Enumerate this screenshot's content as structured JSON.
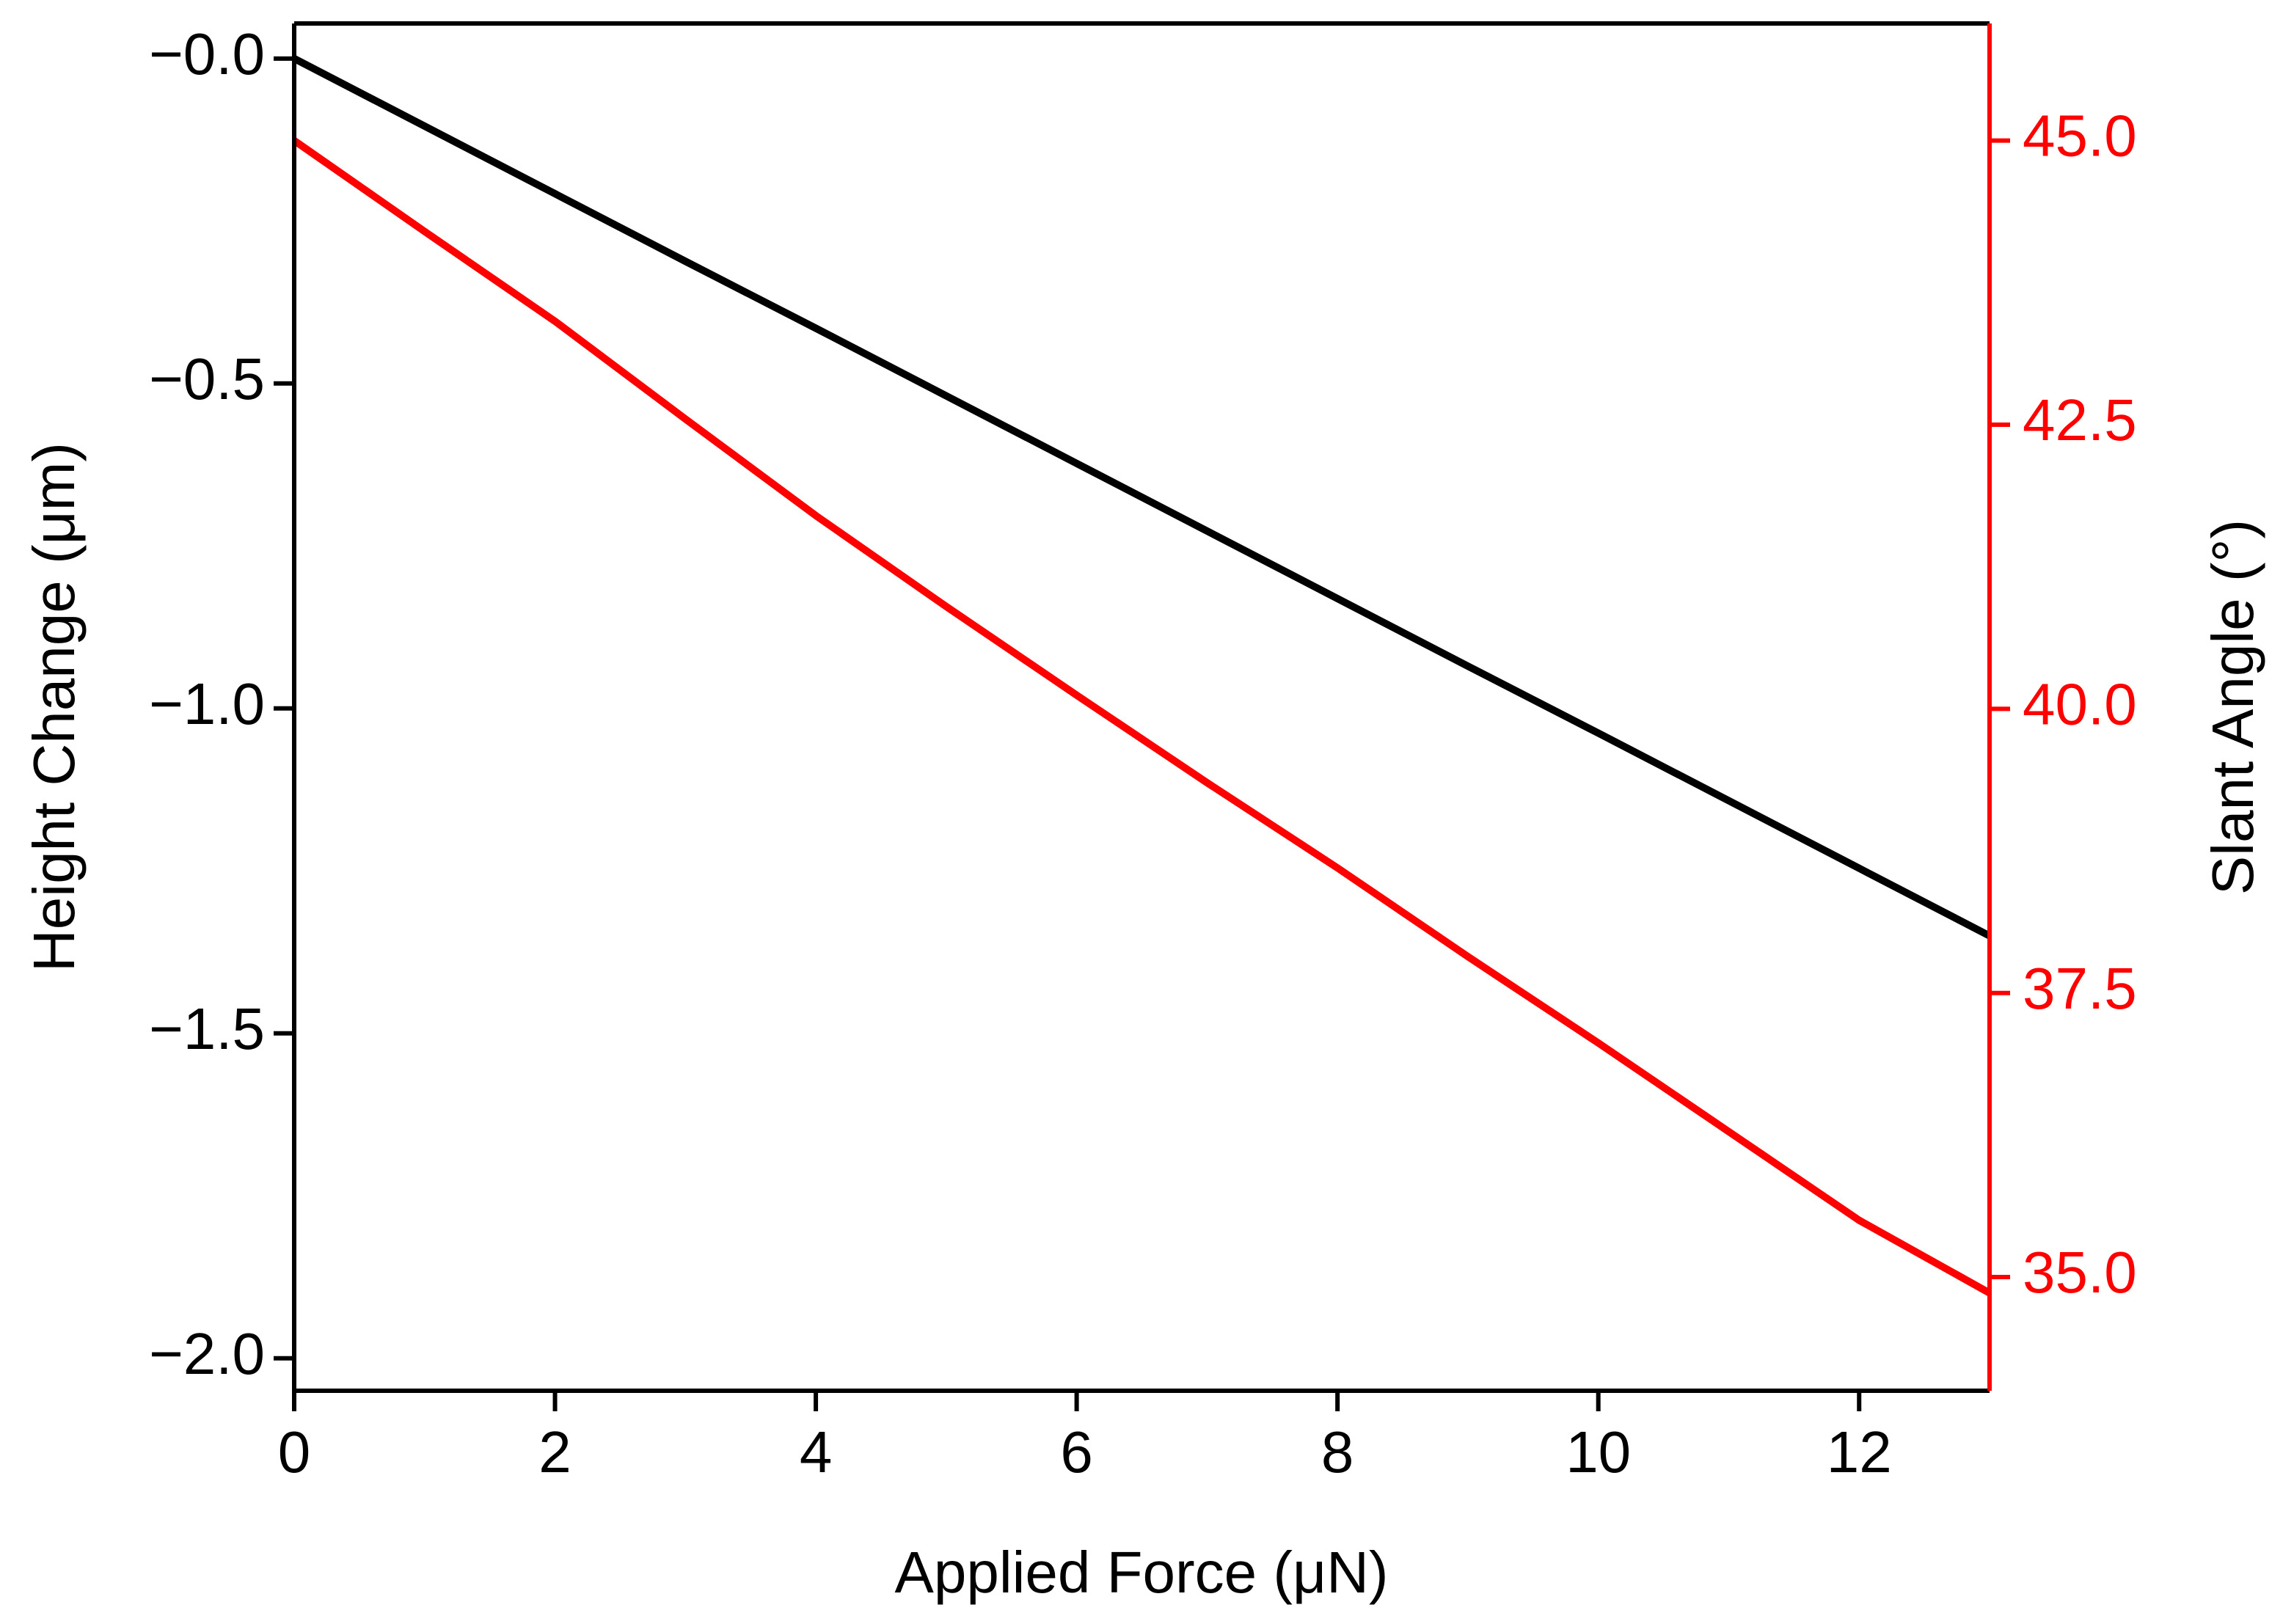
{
  "chart_data": {
    "type": "line",
    "x_label": "Applied Force (μN)",
    "y_label": "Height Change (μm)",
    "y2_label": "Slant Angle (°)",
    "x": [
      0,
      1,
      2,
      3,
      4,
      5,
      6,
      7,
      8,
      9,
      10,
      11,
      12,
      13
    ],
    "series": [
      {
        "color": "#000000",
        "values": [
          0,
          -0.104,
          -0.208,
          -0.312,
          -0.415,
          -0.519,
          -0.623,
          -0.727,
          -0.831,
          -0.935,
          -1.038,
          -1.142,
          -1.246,
          -1.35
        ]
      },
      {
        "color": "#ff0000",
        "axis": "y2",
        "values": [
          45,
          44.2,
          43.41,
          42.55,
          41.7,
          40.9,
          40.12,
          39.35,
          38.6,
          37.82,
          37.06,
          36.28,
          35.5,
          34.86
        ]
      }
    ],
    "xlim": [
      0,
      13
    ],
    "xticks": [
      0,
      2,
      4,
      6,
      8,
      10,
      12
    ],
    "ylim": [
      -2.05,
      0.054
    ],
    "yticks": [
      {
        "value": 0,
        "label": "−0.0"
      },
      {
        "value": -0.5,
        "label": "−0.5"
      },
      {
        "value": -1,
        "label": "−1.0"
      },
      {
        "value": -1.5,
        "label": "−1.5"
      },
      {
        "value": -2,
        "label": "−2.0"
      }
    ],
    "y2lim": [
      34,
      46.03
    ],
    "y2ticks": [
      {
        "value": 35,
        "label": "35.0"
      },
      {
        "value": 37.5,
        "label": "37.5"
      },
      {
        "value": 40,
        "label": "40.0"
      },
      {
        "value": 42.5,
        "label": "42.5"
      },
      {
        "value": 45,
        "label": "45.0"
      }
    ],
    "y2_color": "#ff0000"
  }
}
